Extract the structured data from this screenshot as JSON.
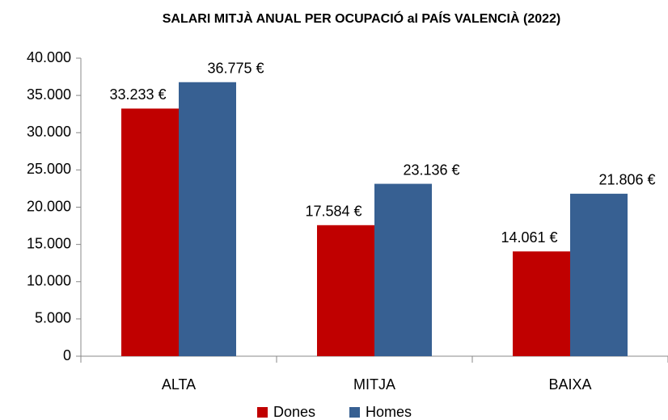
{
  "chart_data": {
    "type": "bar",
    "title": "SALARI MITJÀ ANUAL PER OCUPACIÓ al PAÍS VALENCIÀ (2022)",
    "categories": [
      "ALTA",
      "MITJA",
      "BAIXA"
    ],
    "series": [
      {
        "name": "Dones",
        "color": "#c00000",
        "values": [
          33233,
          17584,
          14061
        ],
        "value_labels": [
          "33.233 €",
          "17.584 €",
          "14.061 €"
        ]
      },
      {
        "name": "Homes",
        "color": "#376092",
        "values": [
          36775,
          23136,
          21806
        ],
        "value_labels": [
          "36.775 €",
          "23.136 €",
          "21.806 €"
        ]
      }
    ],
    "ylim": [
      0,
      40000
    ],
    "yticks": [
      0,
      {
        "value": 5000,
        "label": "5.000"
      },
      {
        "value": 10000,
        "label": "10.000"
      },
      {
        "value": 15000,
        "label": "15.000"
      },
      {
        "value": 20000,
        "label": "20.000"
      },
      {
        "value": 25000,
        "label": "25.000"
      },
      {
        "value": 30000,
        "label": "30.000"
      },
      {
        "value": 35000,
        "label": "35.000"
      },
      {
        "value": 40000,
        "label": "40.000"
      }
    ],
    "grid": false,
    "legend": "bottom"
  }
}
